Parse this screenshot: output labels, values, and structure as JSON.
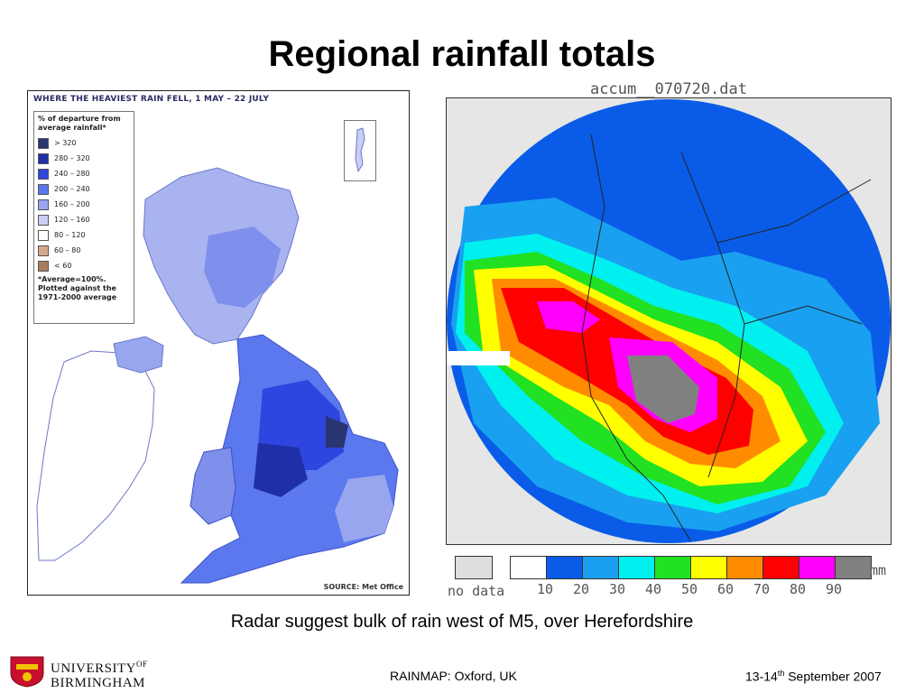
{
  "slide": {
    "title": "Regional rainfall totals",
    "caption": "Radar suggest bulk of rain west of M5, over Herefordshire",
    "footer_center": "RAINMAP: Oxford, UK",
    "footer_date_pre": "13-14",
    "footer_date_sup": "th",
    "footer_date_post": " September 2007"
  },
  "logo": {
    "line1": "UNIVERSITY",
    "line1_sup": "OF",
    "line2": "BIRMINGHAM"
  },
  "left_map": {
    "title": "WHERE THE HEAVIEST RAIN FELL, 1 MAY – 22 JULY",
    "legend_title_1": "% of departure from",
    "legend_title_2": "average rainfall*",
    "legend_items": [
      {
        "label": "> 320",
        "color": "#2a3470"
      },
      {
        "label": "280 – 320",
        "color": "#1f2fa8"
      },
      {
        "label": "240 – 280",
        "color": "#2f45e0"
      },
      {
        "label": "200 – 240",
        "color": "#5b78ef"
      },
      {
        "label": "160 – 200",
        "color": "#97a6ee"
      },
      {
        "label": "120 – 160",
        "color": "#c9cef3"
      },
      {
        "label": "80 – 120",
        "color": "#ffffff"
      },
      {
        "label": "60 – 80",
        "color": "#d6a88a"
      },
      {
        "label": "< 60",
        "color": "#a87d5d"
      }
    ],
    "footnote_1": "*Average=100%.",
    "footnote_2": "Plotted against the",
    "footnote_3": "1971-2000 average",
    "source": "SOURCE: Met Office"
  },
  "radar": {
    "file_label": "accum__070720.dat",
    "nodata_label": "no data",
    "unit": "mm",
    "ticks": [
      "10",
      "20",
      "30",
      "40",
      "50",
      "60",
      "70",
      "80",
      "90"
    ],
    "colorbar": [
      "#ffffff",
      "#0a5ce8",
      "#1aa0f0",
      "#00f0f0",
      "#22e022",
      "#ffff00",
      "#ff8c00",
      "#ff0000",
      "#ff00ff",
      "#808080"
    ],
    "nodata_color": "#dedede"
  }
}
